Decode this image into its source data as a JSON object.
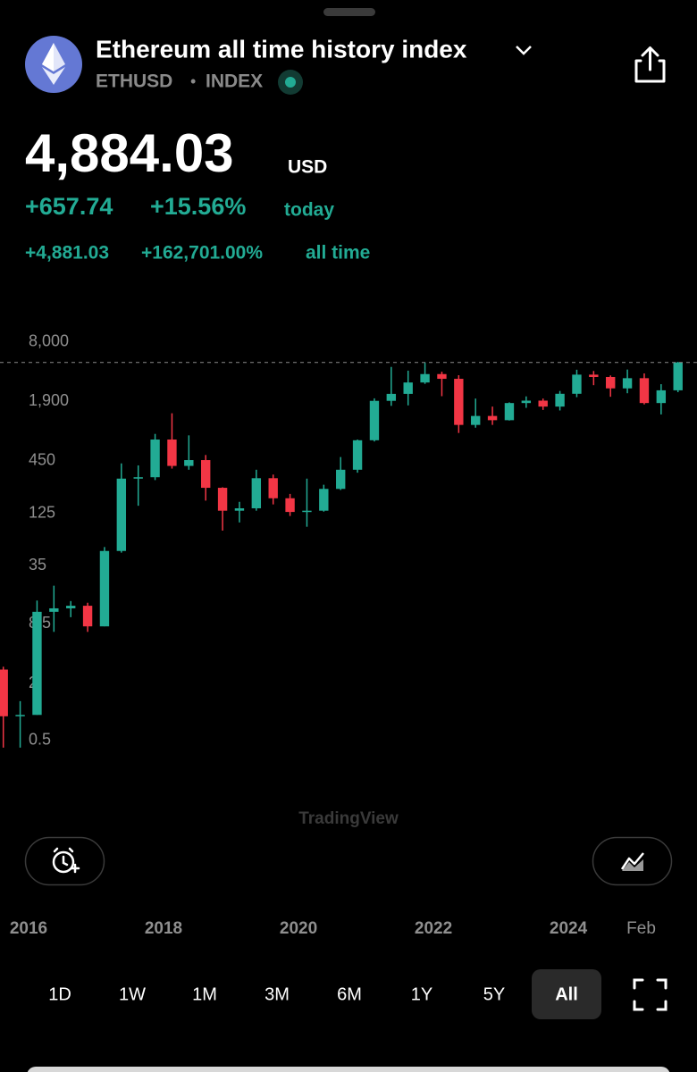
{
  "header": {
    "title": "Ethereum all time history index",
    "symbol": "ETHUSD",
    "separator": "•",
    "exchange": "INDEX"
  },
  "quote": {
    "price": "4,884.03",
    "currency": "USD",
    "change": "+657.74",
    "change_percent": "+15.56%",
    "change_period": "today",
    "all_time_change": "+4,881.03",
    "all_time_percent": "+162,701.00%",
    "all_time_label": "all time"
  },
  "chart_data": {
    "type": "candlestick",
    "log_scale": true,
    "up_color": "#22ab94",
    "down_color": "#f23645",
    "watermark": "TradingView",
    "x": [
      2015.625,
      2015.875,
      2016.125,
      2016.375,
      2016.625,
      2016.875,
      2017.125,
      2017.375,
      2017.625,
      2017.875,
      2018.125,
      2018.375,
      2018.625,
      2018.875,
      2019.125,
      2019.375,
      2019.625,
      2019.875,
      2020.125,
      2020.375,
      2020.625,
      2020.875,
      2021.125,
      2021.375,
      2021.625,
      2021.875,
      2022.125,
      2022.375,
      2022.625,
      2022.875,
      2023.125,
      2023.375,
      2023.625,
      2023.875,
      2024.125,
      2024.375,
      2024.625,
      2024.875,
      2025.125,
      2025.375,
      2025.625
    ],
    "open": [
      2.8,
      0.9,
      0.93,
      11.4,
      12.4,
      13.2,
      8,
      50,
      290,
      300,
      750,
      395,
      455,
      232,
      133,
      141,
      293,
      180,
      129,
      133,
      226,
      360,
      737,
      1920,
      2275,
      3000,
      3680,
      3280,
      1070,
      1330,
      1200,
      1820,
      1930,
      1670,
      2280,
      3630,
      3430,
      2600,
      3330,
      1820,
      2480
    ],
    "high": [
      3.0,
      1.3,
      15,
      21.5,
      14.8,
      14.2,
      55,
      420,
      400,
      860,
      1420,
      830,
      515,
      235,
      165,
      360,
      320,
      200,
      290,
      250,
      490,
      750,
      2040,
      4380,
      4000,
      4890,
      3900,
      3580,
      2030,
      1670,
      1850,
      2140,
      2030,
      2440,
      4090,
      3970,
      3560,
      4110,
      3740,
      2880,
      4950
    ],
    "low": [
      0.42,
      0.42,
      0.93,
      7,
      10,
      7,
      8,
      48,
      150,
      280,
      370,
      360,
      170,
      82,
      100,
      133,
      155,
      117,
      90,
      130,
      220,
      335,
      715,
      1700,
      1720,
      2900,
      2150,
      880,
      1000,
      1070,
      1190,
      1620,
      1540,
      1520,
      2100,
      2810,
      2120,
      2310,
      1760,
      1380,
      2370
    ],
    "close": [
      0.9,
      0.93,
      11.4,
      12.4,
      13.2,
      8,
      50,
      290,
      300,
      750,
      395,
      455,
      232,
      133,
      141,
      293,
      180,
      129,
      133,
      226,
      360,
      737,
      1920,
      2275,
      3000,
      3680,
      3280,
      1070,
      1330,
      1200,
      1820,
      1930,
      1670,
      2280,
      3630,
      3430,
      2600,
      3330,
      1820,
      2480,
      4884.03
    ],
    "ylim": [
      0.1,
      10000
    ],
    "yticks": [
      0.5,
      2,
      8.5,
      35,
      125,
      450,
      {
        "value": 1900,
        "label": "1,900"
      },
      {
        "value": 8000,
        "label": "8,000"
      }
    ],
    "xlim": [
      2015.576,
      2025.907
    ],
    "xticks": [
      2016,
      2018,
      2020,
      2022,
      2024,
      {
        "value": 2025.08,
        "label": "Feb"
      }
    ]
  },
  "timeframes": {
    "options": [
      "1D",
      "1W",
      "1M",
      "3M",
      "6M",
      "1Y",
      "5Y",
      "All"
    ],
    "selected": 7
  }
}
